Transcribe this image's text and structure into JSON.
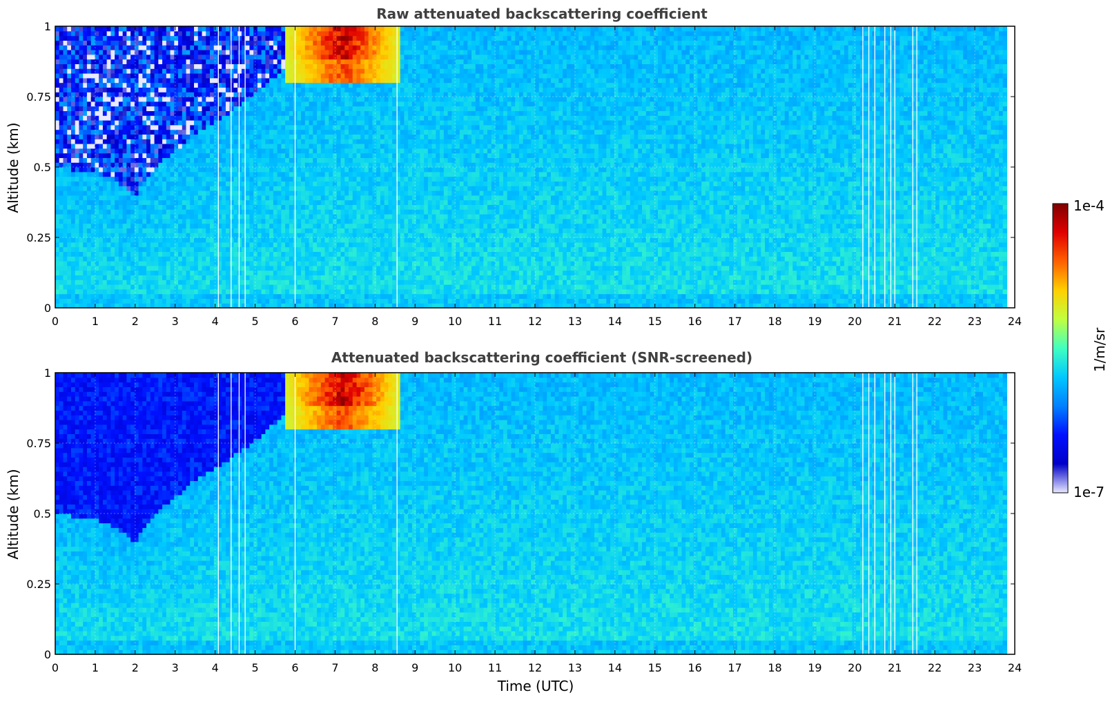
{
  "chart_data": [
    {
      "type": "heatmap",
      "title": "Raw attenuated backscattering coefficient",
      "xlabel": "",
      "ylabel": "Altitude (km)",
      "xlim": [
        0,
        24
      ],
      "ylim": [
        0,
        1
      ],
      "x_ticks": [
        "0",
        "1",
        "2",
        "3",
        "4",
        "5",
        "6",
        "7",
        "8",
        "9",
        "10",
        "11",
        "12",
        "13",
        "14",
        "15",
        "16",
        "17",
        "18",
        "19",
        "20",
        "21",
        "22",
        "23",
        "24"
      ],
      "y_ticks": [
        "0",
        "0.25",
        "0.5",
        "0.75",
        "1"
      ],
      "grid": true,
      "data_end_time": 23.8,
      "colormap": "jet",
      "color_scale": "log",
      "color_range": [
        1e-07,
        0.0001
      ],
      "features": {
        "boundary_layer_top_km": [
          [
            0,
            0.5
          ],
          [
            1,
            0.48
          ],
          [
            1.5,
            0.45
          ],
          [
            2,
            0.4
          ],
          [
            2.5,
            0.5
          ],
          [
            3,
            0.56
          ],
          [
            3.5,
            0.62
          ],
          [
            4,
            0.66
          ],
          [
            5,
            0.76
          ],
          [
            6,
            0.88
          ],
          [
            7,
            0.95
          ],
          [
            8,
            1.0
          ],
          [
            24,
            1.0
          ]
        ],
        "cloud_layer": {
          "time_range": [
            5.8,
            8.6
          ],
          "altitude_range": [
            0.8,
            1.0
          ],
          "level": "1e-4"
        },
        "data_gaps_utc": [
          4.08,
          4.4,
          4.6,
          4.75,
          6.0,
          8.55,
          20.2,
          20.35,
          20.5,
          20.75,
          20.9,
          21.0,
          21.45,
          21.55
        ]
      }
    },
    {
      "type": "heatmap",
      "title": "Attenuated backscattering coefficient (SNR-screened)",
      "xlabel": "Time (UTC)",
      "ylabel": "Altitude (km)",
      "xlim": [
        0,
        24
      ],
      "ylim": [
        0,
        1
      ],
      "x_ticks": [
        "0",
        "1",
        "2",
        "3",
        "4",
        "5",
        "6",
        "7",
        "8",
        "9",
        "10",
        "11",
        "12",
        "13",
        "14",
        "15",
        "16",
        "17",
        "18",
        "19",
        "20",
        "21",
        "22",
        "23",
        "24"
      ],
      "y_ticks": [
        "0",
        "0.25",
        "0.5",
        "0.75",
        "1"
      ],
      "grid": true,
      "data_end_time": 23.8,
      "colormap": "jet",
      "color_scale": "log",
      "color_range": [
        1e-07,
        0.0001
      ],
      "features": {
        "boundary_layer_top_km": [
          [
            0,
            0.5
          ],
          [
            1,
            0.48
          ],
          [
            1.5,
            0.45
          ],
          [
            2,
            0.4
          ],
          [
            2.5,
            0.5
          ],
          [
            3,
            0.56
          ],
          [
            3.5,
            0.62
          ],
          [
            4,
            0.66
          ],
          [
            5,
            0.76
          ],
          [
            6,
            0.88
          ],
          [
            7,
            0.95
          ],
          [
            8,
            1.0
          ],
          [
            24,
            1.0
          ]
        ],
        "cloud_layer": {
          "time_range": [
            5.8,
            8.6
          ],
          "altitude_range": [
            0.8,
            1.0
          ],
          "level": "1e-4"
        },
        "data_gaps_utc": [
          4.08,
          4.4,
          4.6,
          4.75,
          6.0,
          8.55,
          20.2,
          20.35,
          20.5,
          20.75,
          20.9,
          21.0,
          21.45,
          21.55
        ]
      }
    }
  ],
  "colorbar": {
    "label": "1/m/sr",
    "max_label": "1e-4",
    "min_label": "1e-7",
    "colors": [
      "#e8e8ff",
      "#0000c8",
      "#0010ff",
      "#0080ff",
      "#00c8ff",
      "#40ffc0",
      "#c0ff40",
      "#ffd000",
      "#ff6000",
      "#e00000",
      "#800000"
    ]
  }
}
